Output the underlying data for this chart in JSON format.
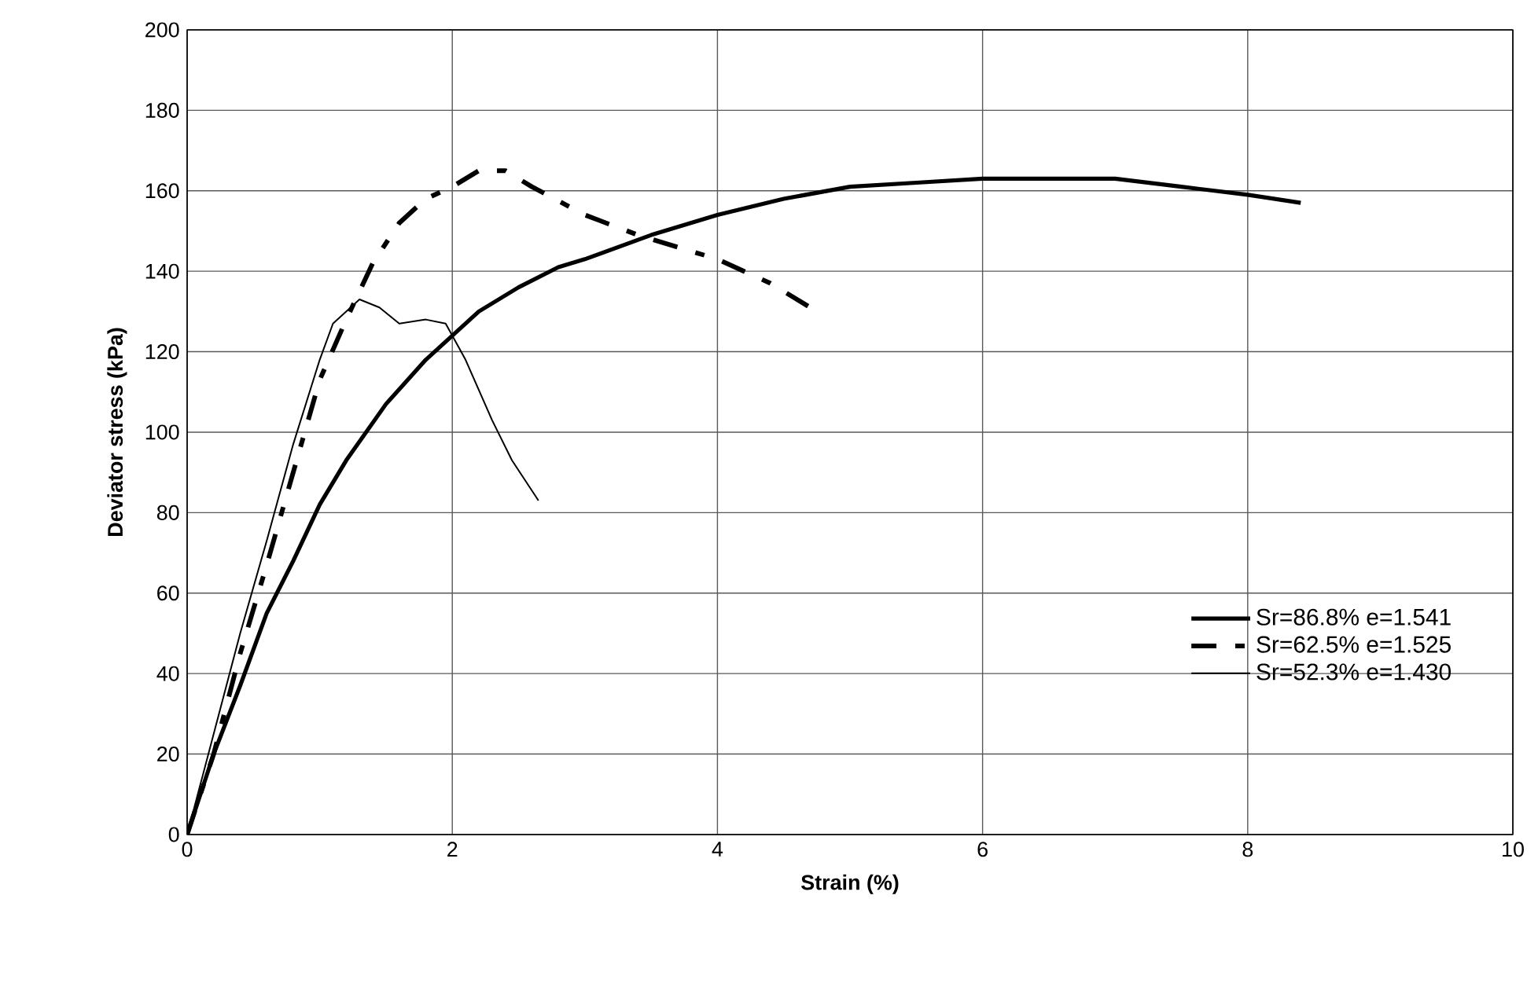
{
  "chart_data": {
    "type": "line",
    "xlabel": "Strain (%)",
    "ylabel": "Deviator stress (kPa)",
    "xlim": [
      0,
      10
    ],
    "ylim": [
      0,
      200
    ],
    "xticks": [
      0,
      2,
      4,
      6,
      8,
      10
    ],
    "yticks": [
      0,
      20,
      40,
      60,
      80,
      100,
      120,
      140,
      160,
      180,
      200
    ],
    "grid": true,
    "legend": "bottom right",
    "series": [
      {
        "name": "Sr=86.8%  e=1.541",
        "color": "#000000",
        "line_style": "solid",
        "x": [
          0,
          0.2,
          0.4,
          0.6,
          0.8,
          1.0,
          1.2,
          1.5,
          1.8,
          2.0,
          2.2,
          2.5,
          2.8,
          3.0,
          3.5,
          4.0,
          4.5,
          5.0,
          5.5,
          6.0,
          6.5,
          7.0,
          7.5,
          8.0,
          8.4
        ],
        "values": [
          0,
          20,
          37,
          55,
          68,
          82,
          93,
          107,
          118,
          124,
          130,
          136,
          141,
          143,
          149,
          154,
          158,
          161,
          162,
          163,
          163,
          163,
          161,
          159,
          157
        ]
      },
      {
        "name": "Sr=62.5%  e=1.525",
        "color": "#000000",
        "line_style": "dashed",
        "x": [
          0,
          0.2,
          0.4,
          0.6,
          0.8,
          1.0,
          1.2,
          1.4,
          1.6,
          1.8,
          2.0,
          2.2,
          2.4,
          2.6,
          3.0,
          3.4,
          3.8,
          4.0,
          4.4,
          4.7
        ],
        "values": [
          0,
          20,
          45,
          67,
          90,
          113,
          128,
          142,
          152,
          158,
          161,
          165,
          165,
          161,
          154,
          149,
          145,
          143,
          137,
          131
        ]
      },
      {
        "name": "Sr=52.3%  e=1.430",
        "color": "#000000",
        "line_style": "solid",
        "x": [
          0,
          0.2,
          0.4,
          0.6,
          0.8,
          1.0,
          1.1,
          1.3,
          1.45,
          1.6,
          1.8,
          1.95,
          2.1,
          2.3,
          2.45,
          2.65
        ],
        "values": [
          0,
          25,
          50,
          73,
          97,
          118,
          127,
          133,
          131,
          127,
          128,
          127,
          118,
          103,
          93,
          83
        ]
      }
    ]
  }
}
